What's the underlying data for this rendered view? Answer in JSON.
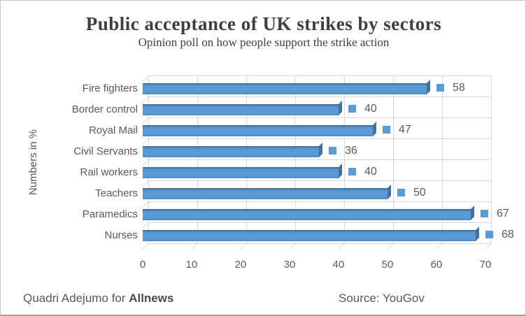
{
  "header": {
    "title": "Public acceptance of UK strikes by sectors",
    "subtitle": "Opinion poll on how people support the strike action"
  },
  "footer": {
    "credit_prefix": "Quadri Adejumo for ",
    "credit_brand": "Allnews",
    "source": "Source: YouGov"
  },
  "chart_data": {
    "type": "bar",
    "orientation": "horizontal",
    "title": "Public acceptance of UK strikes by sectors",
    "subtitle": "Opinion poll on how people support the strike action",
    "categories": [
      "Fire fighters",
      "Border control",
      "Royal Mail",
      "Civil Servants",
      "Rail workers",
      "Teachers",
      "Paramedics",
      "Nurses"
    ],
    "values": [
      58,
      40,
      47,
      36,
      40,
      50,
      67,
      68
    ],
    "data_labels": [
      "58",
      "40",
      "47",
      "36",
      "40",
      "50",
      "67",
      "68"
    ],
    "xlabel": "",
    "ylabel": "Numbers in %",
    "xlim": [
      0,
      70
    ],
    "x_ticks": [
      "0",
      "10",
      "20",
      "30",
      "40",
      "50",
      "60",
      "70"
    ],
    "grid": true,
    "legend": false,
    "style": "excel-3d-bar",
    "colors": {
      "bar": "#5B9BD5",
      "bar_edge": "#41719C",
      "marker": "#5B9BD5",
      "grid": "#D9D9D9",
      "axis_text": "#595959",
      "title_text": "#3F3F3F"
    }
  }
}
